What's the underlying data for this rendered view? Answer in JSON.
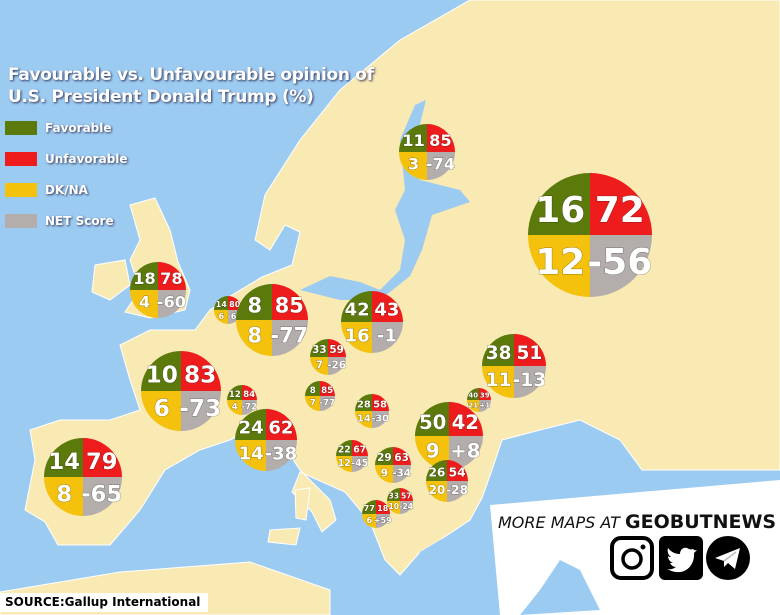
{
  "title": {
    "line1": "Favourable vs. Unfavourable opinion of",
    "line2": "U.S. President Donald Trump (%)"
  },
  "legend": [
    {
      "label": "Favorable",
      "color": "#5c7a0c"
    },
    {
      "label": "Unfavorable",
      "color": "#ee1c1c"
    },
    {
      "label": "DK/NA",
      "color": "#f4c20d"
    },
    {
      "label": "NET Score",
      "color": "#b3aeac"
    }
  ],
  "pies": [
    {
      "favorable": "11",
      "unfavorable": "85",
      "dkna": "3",
      "net": "-74"
    },
    {
      "favorable": "16",
      "unfavorable": "72",
      "dkna": "12",
      "net": "-56"
    },
    {
      "favorable": "18",
      "unfavorable": "78",
      "dkna": "4",
      "net": "-60"
    },
    {
      "favorable": "14",
      "unfavorable": "80",
      "dkna": "6",
      "net": "-66"
    },
    {
      "favorable": "8",
      "unfavorable": "85",
      "dkna": "8",
      "net": "-77"
    },
    {
      "favorable": "42",
      "unfavorable": "43",
      "dkna": "16",
      "net": "-1"
    },
    {
      "favorable": "10",
      "unfavorable": "83",
      "dkna": "6",
      "net": "-73"
    },
    {
      "favorable": "33",
      "unfavorable": "59",
      "dkna": "7",
      "net": "-26"
    },
    {
      "favorable": "8",
      "unfavorable": "85",
      "dkna": "7",
      "net": "-77"
    },
    {
      "favorable": "12",
      "unfavorable": "84",
      "dkna": "4",
      "net": "-72"
    },
    {
      "favorable": "28",
      "unfavorable": "58",
      "dkna": "14",
      "net": "-30"
    },
    {
      "favorable": "24",
      "unfavorable": "62",
      "dkna": "14",
      "net": "-38"
    },
    {
      "favorable": "38",
      "unfavorable": "51",
      "dkna": "11",
      "net": "-13"
    },
    {
      "favorable": "40",
      "unfavorable": "39",
      "dkna": "21",
      "net": "+1"
    },
    {
      "favorable": "50",
      "unfavorable": "42",
      "dkna": "9",
      "net": "+8"
    },
    {
      "favorable": "22",
      "unfavorable": "67",
      "dkna": "12",
      "net": "-45"
    },
    {
      "favorable": "29",
      "unfavorable": "63",
      "dkna": "9",
      "net": "-34"
    },
    {
      "favorable": "26",
      "unfavorable": "54",
      "dkna": "20",
      "net": "-28"
    },
    {
      "favorable": "33",
      "unfavorable": "57",
      "dkna": "10",
      "net": "-24"
    },
    {
      "favorable": "77",
      "unfavorable": "18",
      "dkna": "6",
      "net": "+59"
    },
    {
      "favorable": "14",
      "unfavorable": "79",
      "dkna": "8",
      "net": "-65"
    }
  ],
  "promo": {
    "prefix": "MORE MAPS AT",
    "brand": "GEOBUTNEWS"
  },
  "social_icons": [
    "instagram-icon",
    "twitter-icon",
    "telegram-icon"
  ],
  "source": "SOURCE:Gallup International"
}
